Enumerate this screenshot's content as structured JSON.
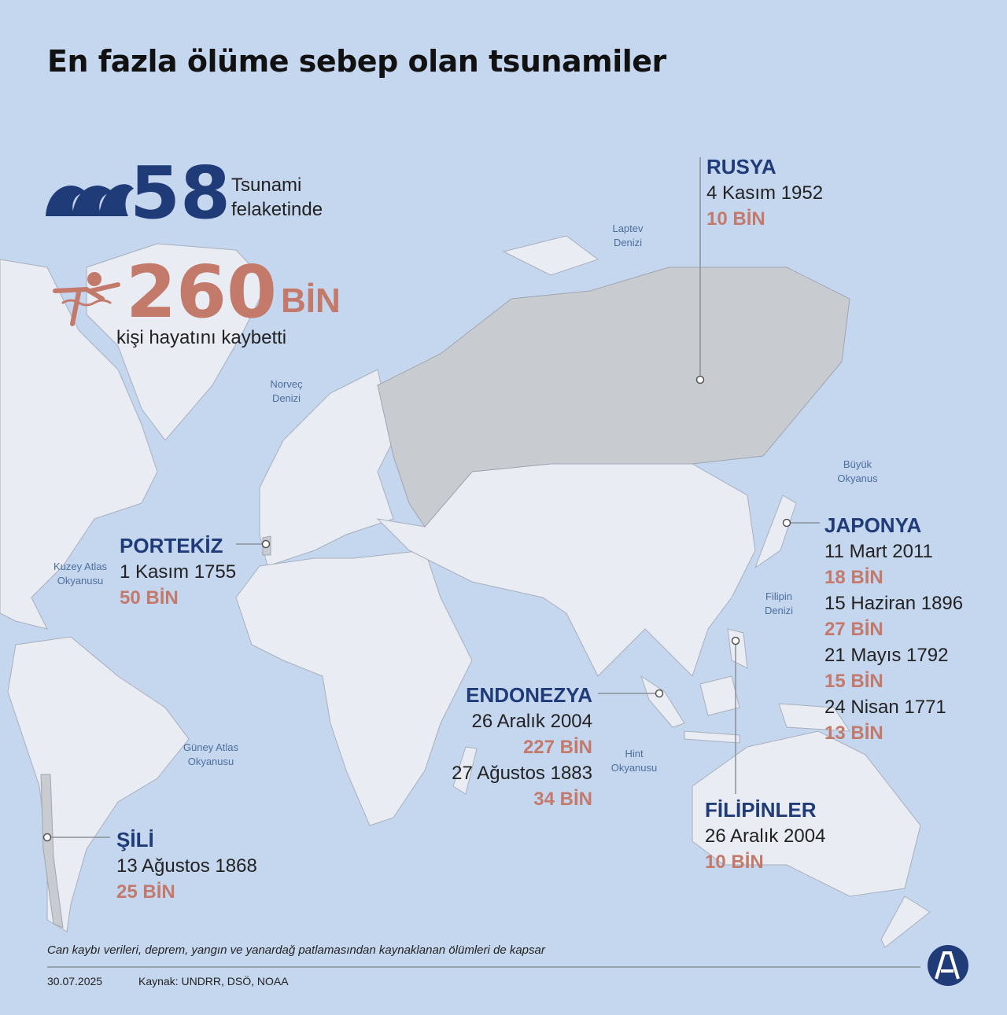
{
  "title": "En fazla ölüme sebep olan tsunamiler",
  "summary": {
    "count": "58",
    "count_label": [
      "Tsunami",
      "felaketinde"
    ],
    "deaths": "260",
    "deaths_unit": "BİN",
    "deaths_label": "kişi hayatını kaybetti"
  },
  "seas": [
    {
      "lines": [
        "Laptev",
        "Denizi"
      ]
    },
    {
      "lines": [
        "Norveç",
        "Denizi"
      ]
    },
    {
      "lines": [
        "Büyük",
        "Okyanus"
      ]
    },
    {
      "lines": [
        "Kuzey Atlas",
        "Okyanusu"
      ]
    },
    {
      "lines": [
        "Filipin",
        "Denizi"
      ]
    },
    {
      "lines": [
        "Güney Atlas",
        "Okyanusu"
      ]
    },
    {
      "lines": [
        "Hint",
        "Okyanusu"
      ]
    }
  ],
  "events": [
    {
      "country": "RUSYA",
      "entries": [
        {
          "date": "4 Kasım 1952",
          "deaths": "10 BİN"
        }
      ]
    },
    {
      "country": "PORTEKİZ",
      "entries": [
        {
          "date": "1 Kasım 1755",
          "deaths": "50 BİN"
        }
      ]
    },
    {
      "country": "JAPONYA",
      "entries": [
        {
          "date": "11 Mart 2011",
          "deaths": "18 BİN"
        },
        {
          "date": "15 Haziran 1896",
          "deaths": "27 BİN"
        },
        {
          "date": "21 Mayıs 1792",
          "deaths": "15 BİN"
        },
        {
          "date": "24 Nisan 1771",
          "deaths": "13 BİN"
        }
      ]
    },
    {
      "country": "ENDONEZYA",
      "entries": [
        {
          "date": "26 Aralık 2004",
          "deaths": "227 BİN"
        },
        {
          "date": "27 Ağustos 1883",
          "deaths": "34 BİN"
        }
      ]
    },
    {
      "country": "FİLİPİNLER",
      "entries": [
        {
          "date": "26 Aralık 2004",
          "deaths": "10 BİN"
        }
      ]
    },
    {
      "country": "ŞİLİ",
      "entries": [
        {
          "date": "13 Ağustos 1868",
          "deaths": "25 BİN"
        }
      ]
    }
  ],
  "footer": {
    "note": "Can kaybı verileri, deprem, yangın ve yanardağ patlamasından kaynaklanan ölümleri de kapsar",
    "date": "30.07.2025",
    "source": "Kaynak: UNDRR, DSÖ, NOAA"
  }
}
